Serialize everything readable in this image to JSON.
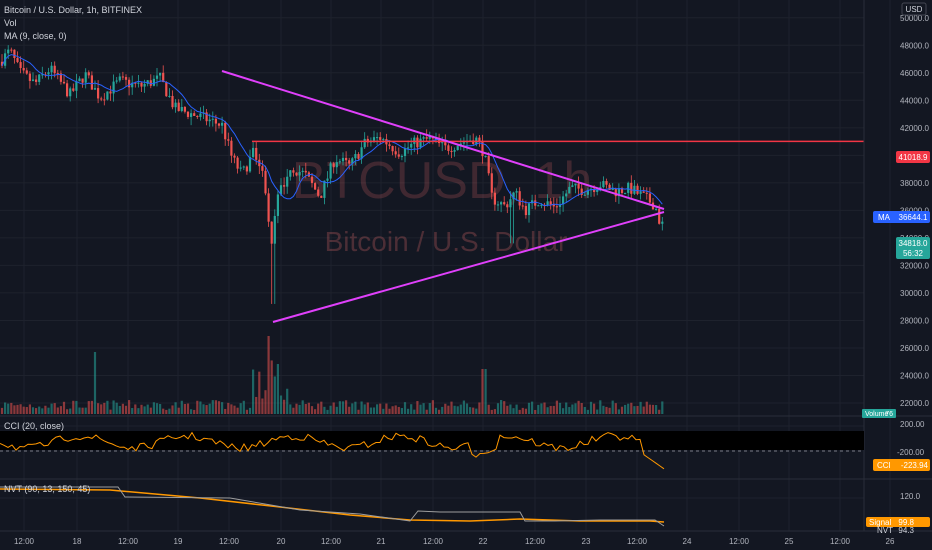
{
  "header": {
    "symbol_line": "Bitcoin / U.S. Dollar, 1h, BITFINEX",
    "vol_label": "Vol",
    "ma_label": "MA (9, close, 0)",
    "currency": "USD"
  },
  "watermark": {
    "ticker": "BTCUSD, 1h",
    "name": "Bitcoin / U.S. Dollar"
  },
  "colors": {
    "background": "#131722",
    "grid": "#1e222d",
    "up": "#26a69a",
    "down": "#ef5350",
    "trendline": "#e040fb",
    "resistance": "#f23645",
    "ma_line": "#2962ff",
    "cci_line": "#ff9800",
    "nvt_line": "#ff9800",
    "nvt_signal": "#9e9e9e"
  },
  "chart_data": [
    {
      "type": "candlestick",
      "title": "Bitcoin / U.S. Dollar, 1h, BITFINEX",
      "x_tick_labels": [
        "12:00",
        "18",
        "12:00",
        "19",
        "12:00",
        "20",
        "12:00",
        "21",
        "12:00",
        "22",
        "12:00",
        "23",
        "12:00",
        "24",
        "12:00",
        "25",
        "12:00",
        "26"
      ],
      "y_tick_labels": [
        "22000.0",
        "24000.0",
        "26000.0",
        "28000.0",
        "30000.0",
        "32000.0",
        "34000.0",
        "36000.0",
        "38000.0",
        "40000.0",
        "42000.0",
        "44000.0",
        "46000.0",
        "48000.0",
        "50000.0"
      ],
      "ylim": [
        21200,
        51000
      ],
      "grid": true,
      "price_labels": {
        "resistance": "41018.9",
        "ma": "36644.1",
        "last": "34818.0",
        "countdown": "56:32",
        "ma_tag": "MA"
      },
      "horizontal_line": 41018.9,
      "trendlines": [
        {
          "from": [
            "17 22:00",
            47200
          ],
          "to": [
            "23 15:00",
            37100
          ]
        },
        {
          "from": [
            "19 20:00",
            29200
          ],
          "to": [
            "23 15:00",
            37200
          ]
        }
      ],
      "volume_label": "Volume",
      "volume_value": "76",
      "series": [
        {
          "name": "MA (9, close, 0)",
          "last": 36644.1
        }
      ],
      "key_points": [
        {
          "x": "17 06:00",
          "close": 46800
        },
        {
          "x": "18 18:00",
          "close": 45500
        },
        {
          "x": "19 14:00",
          "close": 41000
        },
        {
          "x": "19 20:00",
          "low": 29200,
          "close": 36500
        },
        {
          "x": "20 12:00",
          "close": 39500
        },
        {
          "x": "21 06:00",
          "close": 41300
        },
        {
          "x": "22 00:00",
          "close": 40800
        },
        {
          "x": "22 12:00",
          "low": 33600,
          "close": 36500
        },
        {
          "x": "23 12:00",
          "close": 37700
        },
        {
          "x": "23 18:00",
          "close": 34818
        }
      ]
    },
    {
      "type": "line",
      "title": "CCI (20, close)",
      "y_tick_labels": [
        "200.00",
        "-200.00"
      ],
      "last_label": "CCI",
      "last_value": "-223.94"
    },
    {
      "type": "line",
      "title": "NVT (90, 13, 150, 45)",
      "y_tick_labels": [
        "120.0"
      ],
      "signal_label": "Signal",
      "signal_value": "99.8",
      "nvt_label": "NVT",
      "nvt_value": "94.3"
    }
  ]
}
